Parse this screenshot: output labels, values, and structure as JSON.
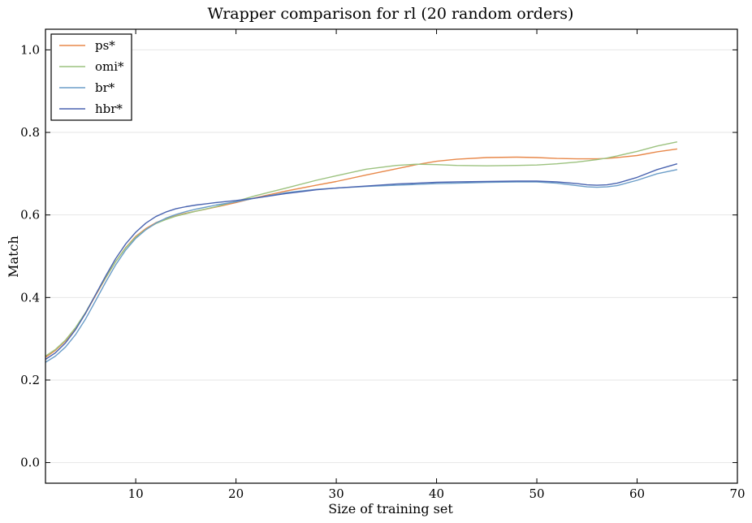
{
  "chart_data": {
    "type": "line",
    "title": "Wrapper comparison for rl (20 random orders)",
    "xlabel": "Size of training set",
    "ylabel": "Match",
    "xlim": [
      1,
      70
    ],
    "ylim": [
      -0.05,
      1.05
    ],
    "xticks": [
      10,
      20,
      30,
      40,
      50,
      60,
      70
    ],
    "yticks": [
      0.0,
      0.2,
      0.4,
      0.6,
      0.8,
      1.0
    ],
    "xtick_labels": [
      "10",
      "20",
      "30",
      "40",
      "50",
      "60",
      "70"
    ],
    "ytick_labels": [
      "0.0",
      "0.2",
      "0.4",
      "0.6",
      "0.8",
      "1.0"
    ],
    "grid": "horizontal",
    "legend": "top-left",
    "x": [
      1,
      2,
      3,
      4,
      5,
      6,
      7,
      8,
      9,
      10,
      11,
      12,
      13,
      14,
      15,
      16,
      18,
      20,
      22,
      25,
      28,
      30,
      33,
      36,
      38,
      40,
      42,
      45,
      48,
      50,
      52,
      54,
      55,
      56,
      57,
      58,
      60,
      62,
      64
    ],
    "series": [
      {
        "name": "ps*",
        "color": "#e8884a",
        "values": [
          0.255,
          0.272,
          0.295,
          0.325,
          0.362,
          0.405,
          0.447,
          0.487,
          0.521,
          0.548,
          0.567,
          0.581,
          0.591,
          0.598,
          0.604,
          0.609,
          0.619,
          0.63,
          0.642,
          0.658,
          0.672,
          0.681,
          0.697,
          0.712,
          0.722,
          0.73,
          0.735,
          0.739,
          0.74,
          0.739,
          0.737,
          0.736,
          0.736,
          0.736,
          0.737,
          0.739,
          0.744,
          0.753,
          0.76
        ]
      },
      {
        "name": "omi*",
        "color": "#9cc27f",
        "values": [
          0.258,
          0.274,
          0.297,
          0.327,
          0.364,
          0.407,
          0.448,
          0.487,
          0.52,
          0.546,
          0.565,
          0.579,
          0.589,
          0.597,
          0.603,
          0.609,
          0.62,
          0.633,
          0.647,
          0.665,
          0.684,
          0.695,
          0.711,
          0.72,
          0.723,
          0.722,
          0.72,
          0.719,
          0.72,
          0.721,
          0.724,
          0.728,
          0.731,
          0.734,
          0.738,
          0.743,
          0.754,
          0.767,
          0.777
        ]
      },
      {
        "name": "br*",
        "color": "#6b9dc8",
        "values": [
          0.243,
          0.258,
          0.28,
          0.31,
          0.348,
          0.392,
          0.437,
          0.479,
          0.515,
          0.543,
          0.564,
          0.58,
          0.592,
          0.601,
          0.608,
          0.614,
          0.624,
          0.632,
          0.641,
          0.654,
          0.662,
          0.665,
          0.669,
          0.672,
          0.674,
          0.676,
          0.677,
          0.679,
          0.68,
          0.68,
          0.677,
          0.671,
          0.668,
          0.667,
          0.668,
          0.671,
          0.684,
          0.7,
          0.71
        ]
      },
      {
        "name": "hbr*",
        "color": "#4a64b0",
        "values": [
          0.25,
          0.266,
          0.29,
          0.322,
          0.362,
          0.407,
          0.452,
          0.494,
          0.53,
          0.558,
          0.58,
          0.596,
          0.607,
          0.615,
          0.62,
          0.624,
          0.63,
          0.635,
          0.641,
          0.652,
          0.661,
          0.665,
          0.67,
          0.675,
          0.677,
          0.679,
          0.68,
          0.681,
          0.682,
          0.682,
          0.68,
          0.676,
          0.673,
          0.672,
          0.673,
          0.677,
          0.691,
          0.71,
          0.724
        ]
      }
    ]
  }
}
